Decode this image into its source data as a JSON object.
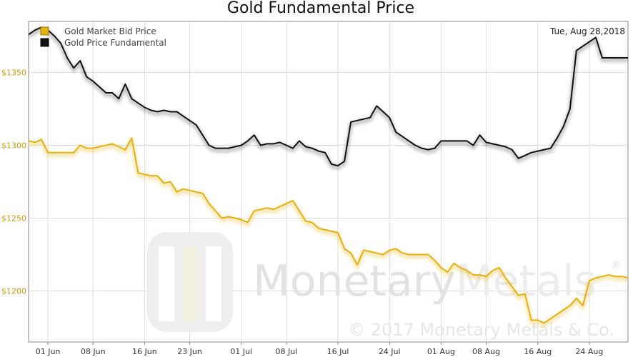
{
  "chart_data": {
    "type": "line",
    "title": "Gold Fundamental Price",
    "date_label": "Tue, Aug 28,2018",
    "ylim": [
      1165,
      1385
    ],
    "y_ticks": [
      1200,
      1250,
      1300,
      1350
    ],
    "y_tick_labels": [
      "$1200",
      "$1250",
      "$1300",
      "$1350"
    ],
    "x_ticks": [
      3,
      10,
      18,
      25,
      33,
      40,
      48,
      56,
      64,
      71,
      79,
      87
    ],
    "x_tick_labels": [
      "01 Jun",
      "08 Jun",
      "16 Jun",
      "23 Jun",
      "01 Jul",
      "08 Jul",
      "16 Jul",
      "24 Jul",
      "01 Aug",
      "08 Aug",
      "16 Aug",
      "24 Aug"
    ],
    "xlim": [
      0,
      93
    ],
    "grid": true,
    "legend_position": "top-left",
    "series": [
      {
        "name": "Gold Market Bid Price",
        "color": "#e6b012",
        "x": [
          0,
          1,
          2,
          3,
          4,
          5,
          6,
          7,
          8,
          9,
          10,
          11,
          12,
          13,
          14,
          15,
          16,
          17,
          18,
          19,
          20,
          21,
          22,
          23,
          24,
          25,
          26,
          27,
          28,
          29,
          30,
          31,
          32,
          33,
          34,
          35,
          36,
          37,
          38,
          39,
          40,
          41,
          42,
          43,
          44,
          45,
          46,
          47,
          48,
          49,
          50,
          51,
          52,
          53,
          54,
          55,
          56,
          57,
          58,
          59,
          60,
          61,
          62,
          63,
          64,
          65,
          66,
          67,
          68,
          69,
          70,
          71,
          72,
          73,
          74,
          75,
          76,
          77,
          78,
          79,
          80,
          81,
          82,
          83,
          84,
          85,
          86,
          87,
          88,
          89,
          90,
          91,
          92,
          93
        ],
        "values": [
          1303,
          1302,
          1304,
          1295,
          1295,
          1295,
          1295,
          1295,
          1300,
          1298,
          1298,
          1299,
          1300,
          1301,
          1299,
          1297,
          1305,
          1281,
          1280,
          1279,
          1279,
          1274,
          1275,
          1268,
          1270,
          1269,
          1268,
          1267,
          1260,
          1255,
          1250,
          1251,
          1250,
          1249,
          1247,
          1255,
          1256,
          1257,
          1256,
          1258,
          1260,
          1262,
          1255,
          1248,
          1247,
          1243,
          1242,
          1241,
          1240,
          1229,
          1226,
          1218,
          1228,
          1227,
          1226,
          1225,
          1228,
          1229,
          1226,
          1225,
          1225,
          1225,
          1225,
          1221,
          1216,
          1213,
          1219,
          1216,
          1214,
          1211,
          1211,
          1210,
          1214,
          1216,
          1209,
          1203,
          1197,
          1198,
          1180,
          1180,
          1178,
          1181,
          1184,
          1187,
          1190,
          1195,
          1190,
          1207,
          1209,
          1210,
          1211,
          1210,
          1210,
          1209
        ]
      },
      {
        "name": "Gold Price Fundamental",
        "color": "#111111",
        "x": [
          0,
          1,
          2,
          3,
          4,
          5,
          6,
          7,
          8,
          9,
          10,
          11,
          12,
          13,
          14,
          15,
          16,
          17,
          18,
          19,
          20,
          21,
          22,
          23,
          24,
          25,
          26,
          27,
          28,
          29,
          30,
          31,
          32,
          33,
          34,
          35,
          36,
          37,
          38,
          39,
          40,
          41,
          42,
          43,
          44,
          45,
          46,
          47,
          48,
          49,
          50,
          51,
          52,
          53,
          54,
          55,
          56,
          57,
          58,
          59,
          60,
          61,
          62,
          63,
          64,
          65,
          66,
          67,
          68,
          69,
          70,
          71,
          72,
          73,
          74,
          75,
          76,
          77,
          78,
          79,
          80,
          81,
          82,
          83,
          84,
          85,
          86,
          87,
          88,
          89,
          90,
          91,
          92,
          93
        ],
        "values": [
          1376,
          1379,
          1381,
          1379,
          1375,
          1370,
          1360,
          1353,
          1358,
          1347,
          1344,
          1340,
          1336,
          1336,
          1332,
          1342,
          1332,
          1329,
          1326,
          1324,
          1323,
          1324,
          1323,
          1323,
          1320,
          1317,
          1314,
          1307,
          1300,
          1298,
          1298,
          1298,
          1299,
          1300,
          1303,
          1307,
          1300,
          1301,
          1301,
          1302,
          1300,
          1298,
          1303,
          1299,
          1298,
          1296,
          1295,
          1287,
          1286,
          1289,
          1316,
          1317,
          1318,
          1319,
          1327,
          1323,
          1319,
          1309,
          1306,
          1303,
          1300,
          1298,
          1297,
          1298,
          1303,
          1303,
          1303,
          1303,
          1303,
          1300,
          1307,
          1302,
          1301,
          1300,
          1299,
          1297,
          1291,
          1293,
          1295,
          1296,
          1297,
          1298,
          1305,
          1313,
          1325,
          1365,
          1368,
          1371,
          1374,
          1360,
          1360,
          1360,
          1360,
          1360
        ]
      }
    ]
  },
  "watermark": {
    "brand_a": "Monetary",
    "brand_b": "Metals",
    "registered": "®",
    "copyright": "© 2017 Monetary Metals & Co."
  }
}
